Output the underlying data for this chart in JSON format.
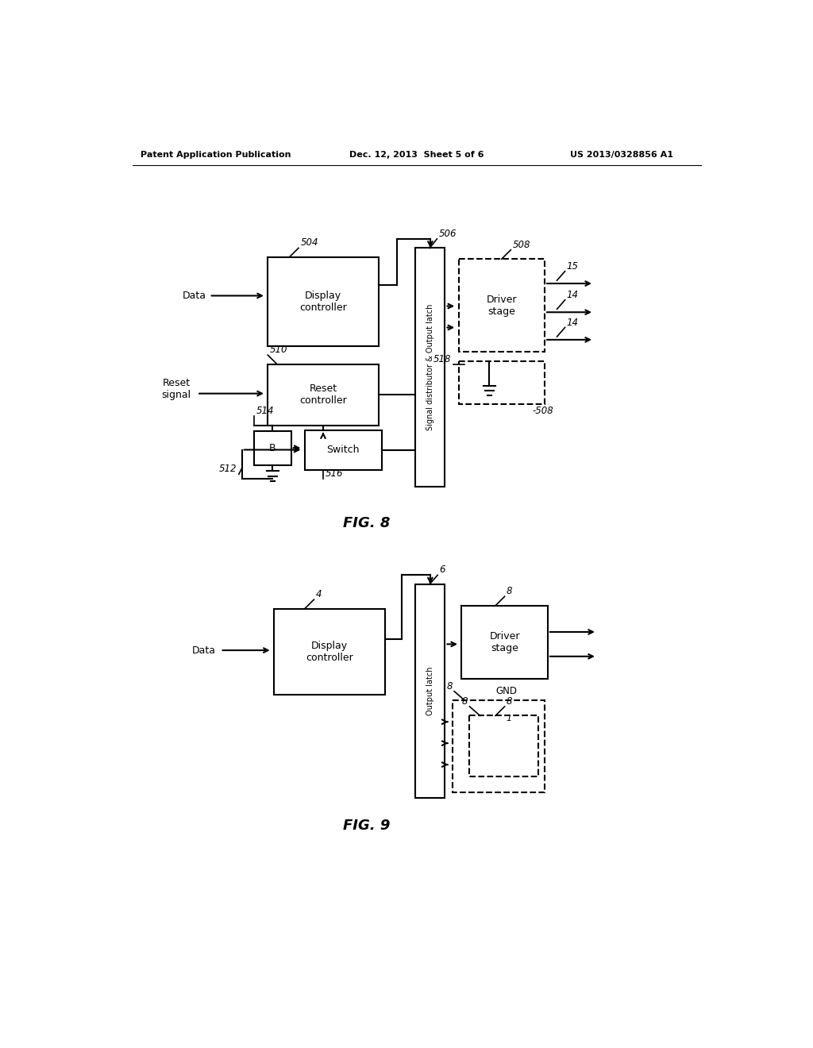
{
  "fig_width": 10.24,
  "fig_height": 13.2,
  "header_left": "Patent Application Publication",
  "header_center": "Dec. 12, 2013  Sheet 5 of 6",
  "header_right": "US 2013/0328856 A1",
  "fig8_label": "FIG. 8",
  "fig9_label": "FIG. 9"
}
